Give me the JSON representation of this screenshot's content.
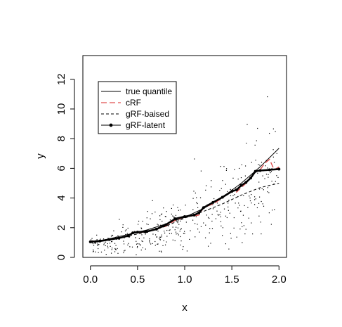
{
  "chart_data": {
    "type": "scatter",
    "title": "",
    "xlabel": "x",
    "ylabel": "y",
    "xlim": [
      -0.08,
      2.08
    ],
    "ylim": [
      0,
      13.6
    ],
    "xticks": [
      0.0,
      0.5,
      1.0,
      1.5,
      2.0
    ],
    "xtick_labels": [
      "0.0",
      "0.5",
      "1.0",
      "1.5",
      "2.0"
    ],
    "yticks": [
      0,
      2,
      4,
      6,
      8,
      10,
      12
    ],
    "ytick_labels": [
      "0",
      "2",
      "4",
      "6",
      "8",
      "10",
      "12"
    ],
    "grid": false,
    "legend_position": "top-left",
    "legend": [
      {
        "label": "true quantile",
        "style": "solid",
        "color": "#000000"
      },
      {
        "label": "cRF",
        "style": "longdash",
        "color": "#e05050"
      },
      {
        "label": "gRF-baised",
        "style": "dashed",
        "color": "#000000"
      },
      {
        "label": "gRF-latent",
        "style": "solid-points",
        "color": "#000000"
      }
    ],
    "series": [
      {
        "name": "true quantile",
        "x": [
          0.0,
          0.2,
          0.4,
          0.6,
          0.8,
          1.0,
          1.2,
          1.4,
          1.6,
          1.8,
          2.0
        ],
        "y": [
          1.0,
          1.25,
          1.55,
          1.85,
          2.25,
          2.7,
          3.3,
          4.05,
          5.0,
          6.1,
          7.35
        ]
      },
      {
        "name": "cRF",
        "x": [
          0.0,
          0.1,
          0.2,
          0.3,
          0.4,
          0.45,
          0.5,
          0.6,
          0.7,
          0.8,
          0.9,
          1.0,
          1.1,
          1.15,
          1.2,
          1.3,
          1.4,
          1.5,
          1.55,
          1.6,
          1.65,
          1.7,
          1.75,
          1.8,
          1.85,
          1.9,
          1.95,
          2.0
        ],
        "y": [
          1.1,
          1.1,
          1.2,
          1.3,
          1.45,
          1.7,
          1.65,
          1.75,
          1.9,
          2.1,
          2.5,
          2.75,
          2.8,
          2.85,
          3.35,
          3.6,
          4.0,
          4.5,
          4.4,
          4.7,
          5.0,
          5.4,
          5.75,
          5.9,
          6.35,
          6.6,
          5.9,
          6.1
        ]
      },
      {
        "name": "gRF-baised",
        "x": [
          0.0,
          0.2,
          0.4,
          0.6,
          0.8,
          1.0,
          1.2,
          1.4,
          1.6,
          1.8,
          2.0
        ],
        "y": [
          1.1,
          1.2,
          1.45,
          1.7,
          2.1,
          2.65,
          3.1,
          3.6,
          4.2,
          4.7,
          5.0
        ]
      },
      {
        "name": "gRF-latent",
        "x": [
          0.0,
          0.1,
          0.2,
          0.3,
          0.4,
          0.45,
          0.5,
          0.6,
          0.7,
          0.8,
          0.9,
          1.0,
          1.1,
          1.15,
          1.2,
          1.3,
          1.4,
          1.5,
          1.55,
          1.6,
          1.65,
          1.7,
          1.75,
          1.8,
          1.9,
          2.0
        ],
        "y": [
          1.05,
          1.1,
          1.2,
          1.3,
          1.45,
          1.65,
          1.7,
          1.75,
          1.9,
          2.2,
          2.6,
          2.75,
          2.85,
          3.0,
          3.35,
          3.7,
          4.05,
          4.45,
          4.55,
          4.85,
          5.05,
          5.35,
          5.8,
          5.85,
          5.9,
          5.95
        ]
      }
    ]
  }
}
